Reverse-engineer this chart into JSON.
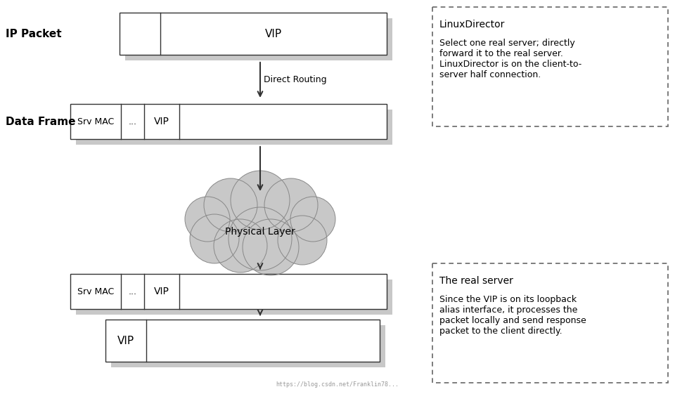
{
  "bg_color": "#ffffff",
  "white": "#ffffff",
  "gray_shadow": "#c8c8c8",
  "box_border": "#333333",
  "cloud_fill": "#c8c8c8",
  "cloud_border": "#888888",
  "arrow_color": "#333333",
  "text_color": "#000000",
  "dashed_box_color": "#666666",
  "ip_packet_label": "IP Packet",
  "data_frame_label": "Data Frame",
  "direct_routing_label": "Direct Routing",
  "cloud_text": "Physical Layer",
  "right_box1_title": "LinuxDirector",
  "right_box1_body": "Select one real server; directly\nforward it to the real server.\nLinuxDirector is on the client-to-\nserver half connection.",
  "right_box2_title": "The real server",
  "right_box2_body": "Since the VIP is on its loopback\nalias interface, it processes the\npacket locally and send response\npacket to the client directly.",
  "watermark": "https://blog.csdn.net/Franklin78..."
}
